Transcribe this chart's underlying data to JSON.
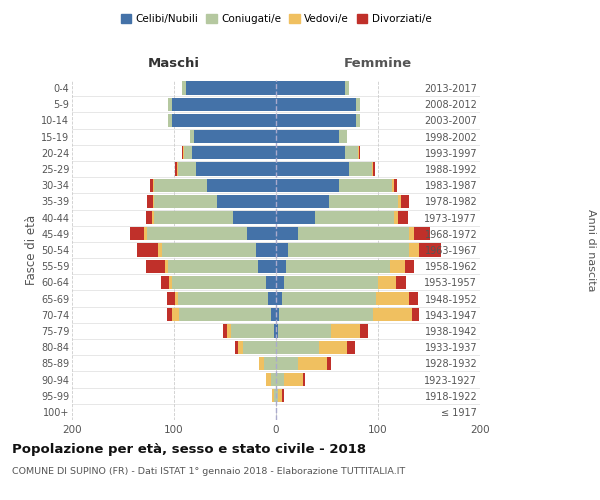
{
  "age_groups": [
    "100+",
    "95-99",
    "90-94",
    "85-89",
    "80-84",
    "75-79",
    "70-74",
    "65-69",
    "60-64",
    "55-59",
    "50-54",
    "45-49",
    "40-44",
    "35-39",
    "30-34",
    "25-29",
    "20-24",
    "15-19",
    "10-14",
    "5-9",
    "0-4"
  ],
  "birth_years": [
    "≤ 1917",
    "1918-1922",
    "1923-1927",
    "1928-1932",
    "1933-1937",
    "1938-1942",
    "1943-1947",
    "1948-1952",
    "1953-1957",
    "1958-1962",
    "1963-1967",
    "1968-1972",
    "1973-1977",
    "1978-1982",
    "1983-1987",
    "1988-1992",
    "1993-1997",
    "1998-2002",
    "2003-2007",
    "2008-2012",
    "2013-2017"
  ],
  "males": {
    "celibi": [
      0,
      0,
      0,
      0,
      0,
      2,
      5,
      8,
      10,
      18,
      20,
      28,
      42,
      58,
      68,
      78,
      82,
      80,
      102,
      102,
      88
    ],
    "coniugati": [
      0,
      2,
      5,
      12,
      32,
      42,
      90,
      88,
      92,
      88,
      92,
      98,
      78,
      62,
      52,
      18,
      8,
      4,
      4,
      4,
      4
    ],
    "vedovi": [
      0,
      2,
      5,
      5,
      5,
      4,
      7,
      3,
      3,
      3,
      4,
      3,
      2,
      1,
      1,
      1,
      1,
      0,
      0,
      0,
      0
    ],
    "divorziati": [
      0,
      0,
      0,
      0,
      3,
      4,
      5,
      8,
      8,
      18,
      20,
      14,
      5,
      5,
      3,
      2,
      1,
      0,
      0,
      0,
      0
    ]
  },
  "females": {
    "nubili": [
      0,
      0,
      0,
      0,
      0,
      2,
      3,
      6,
      8,
      10,
      12,
      22,
      38,
      52,
      62,
      72,
      68,
      62,
      78,
      78,
      68
    ],
    "coniugate": [
      0,
      2,
      8,
      22,
      42,
      52,
      92,
      92,
      92,
      102,
      118,
      108,
      78,
      68,
      52,
      22,
      12,
      8,
      4,
      4,
      4
    ],
    "vedove": [
      0,
      4,
      18,
      28,
      28,
      28,
      38,
      32,
      18,
      14,
      10,
      5,
      4,
      3,
      2,
      1,
      1,
      0,
      0,
      0,
      0
    ],
    "divorziate": [
      0,
      2,
      2,
      4,
      7,
      8,
      7,
      9,
      9,
      9,
      22,
      16,
      9,
      7,
      3,
      2,
      1,
      0,
      0,
      0,
      0
    ]
  },
  "colors": {
    "celibi": "#4472a8",
    "coniugati": "#b5c8a0",
    "vedovi": "#f0c060",
    "divorziati": "#c0302a"
  },
  "title": "Popolazione per età, sesso e stato civile - 2018",
  "subtitle": "COMUNE DI SUPINO (FR) - Dati ISTAT 1° gennaio 2018 - Elaborazione TUTTITALIA.IT",
  "xlabel_left": "Maschi",
  "xlabel_right": "Femmine",
  "ylabel_left": "Fasce di età",
  "ylabel_right": "Anni di nascita",
  "xlim": 200,
  "legend_labels": [
    "Celibi/Nubili",
    "Coniugati/e",
    "Vedovi/e",
    "Divorziati/e"
  ],
  "background_color": "#ffffff",
  "grid_color": "#cccccc"
}
